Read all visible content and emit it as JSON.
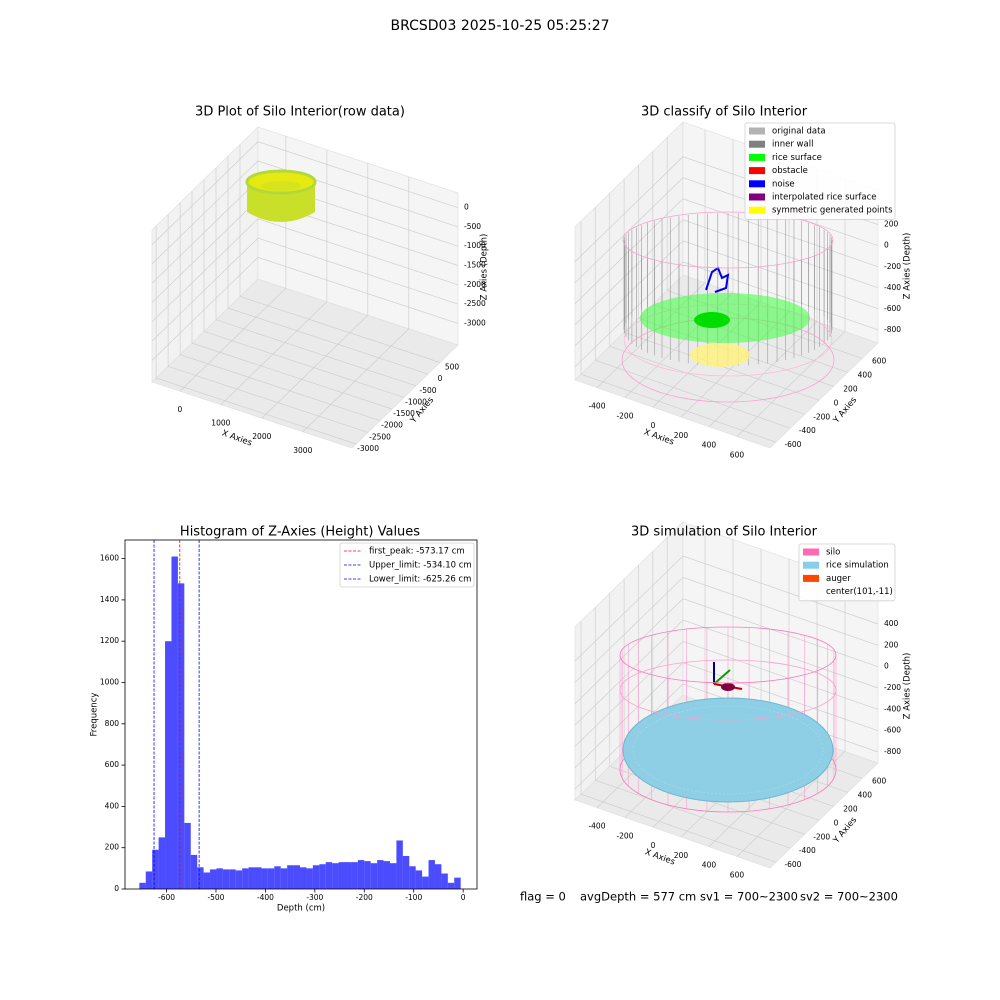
{
  "title": "BRCSD03 2025-10-25 05:25:27",
  "chart_data": [
    {
      "type": "scatter3d",
      "title": "3D Plot of Silo Interior(row data)",
      "xlabel": "X Axies",
      "ylabel": "Y Axies",
      "zlabel": "Z Axies (Depth)",
      "xlim": [
        -680,
        4200
      ],
      "xticks": [
        0,
        1000,
        2000,
        3000
      ],
      "ylim": [
        -3170,
        1250
      ],
      "yticks": [
        -3000,
        -2500,
        -2000,
        -1500,
        -1000,
        -500,
        0,
        500
      ],
      "zlim": [
        -3560,
        380
      ],
      "zticks": [
        -3000,
        -2500,
        -2000,
        -1500,
        -1000,
        -500,
        0
      ]
    },
    {
      "type": "scatter3d",
      "title": "3D classify of Silo Interior",
      "xlabel": "X Axies",
      "ylabel": "Y Axies",
      "zlabel": "Z Axies (Depth)",
      "xlim": [
        -557,
        836
      ],
      "xticks": [
        -400,
        -200,
        0,
        200,
        400,
        600
      ],
      "ylim": [
        -683,
        820
      ],
      "yticks": [
        -600,
        -400,
        -200,
        0,
        200,
        400,
        600
      ],
      "zlim": [
        -925,
        530
      ],
      "zticks": [
        -800,
        -600,
        -400,
        -200,
        0,
        200
      ],
      "legend": [
        {
          "name": "original data",
          "color": "#b3b3b3"
        },
        {
          "name": "inner wall",
          "color": "#808080"
        },
        {
          "name": "rice surface",
          "color": "#00ff00"
        },
        {
          "name": "obstacle",
          "color": "#ff0000"
        },
        {
          "name": "noise",
          "color": "#0000ff"
        },
        {
          "name": "interpolated rice surface",
          "color": "#800080"
        },
        {
          "name": "symmetric generated points",
          "color": "#ffff00"
        }
      ]
    },
    {
      "type": "histogram",
      "title": "Histogram of Z-Axies (Height) Values",
      "xlabel": "Depth (cm)",
      "ylabel": "Frequency",
      "color": "#0000ff",
      "bins": [
        -655,
        -642,
        -629,
        -616,
        -603,
        -590,
        -577,
        -564,
        -551,
        -538,
        -525,
        -512,
        -499,
        -486,
        -473,
        -460,
        -447,
        -434,
        -421,
        -408,
        -395,
        -382,
        -369,
        -356,
        -343,
        -330,
        -317,
        -304,
        -291,
        -278,
        -265,
        -252,
        -239,
        -226,
        -213,
        -200,
        -187,
        -174,
        -161,
        -148,
        -135,
        -122,
        -109,
        -96,
        -83,
        -70,
        -57,
        -44,
        -31,
        -18,
        -5
      ],
      "counts": [
        30,
        85,
        190,
        250,
        1200,
        1610,
        1480,
        320,
        165,
        105,
        80,
        95,
        100,
        95,
        95,
        90,
        100,
        105,
        105,
        100,
        100,
        110,
        100,
        115,
        115,
        105,
        100,
        115,
        120,
        130,
        125,
        130,
        130,
        130,
        140,
        135,
        125,
        140,
        135,
        125,
        235,
        160,
        110,
        90,
        60,
        140,
        120,
        75,
        30,
        55
      ],
      "xlim": [
        -684,
        28
      ],
      "xticks": [
        -600,
        -500,
        -400,
        -300,
        -200,
        -100,
        0
      ],
      "ylim": [
        0,
        1690
      ],
      "yticks": [
        0,
        200,
        400,
        600,
        800,
        1000,
        1200,
        1400,
        1600
      ],
      "vlines": [
        {
          "value": -573.17,
          "label": "first_peak: -573.17 cm",
          "color": "#ff0000"
        },
        {
          "value": -534.1,
          "label": "Upper_limit: -534.10 cm",
          "color": "#0000ff"
        },
        {
          "value": -625.26,
          "label": "Lower_limit: -625.26 cm",
          "color": "#0000ff"
        }
      ],
      "legend_loc": "upper right"
    },
    {
      "type": "surface3d",
      "title": "3D simulation of Silo Interior",
      "xlabel": "X Axies",
      "ylabel": "Y Axies",
      "zlabel": "Z Axies (Depth)",
      "xlim": [
        -557,
        836
      ],
      "xticks": [
        -400,
        -200,
        0,
        200,
        400,
        600
      ],
      "ylim": [
        -683,
        820
      ],
      "yticks": [
        -600,
        -400,
        -200,
        0,
        200,
        400,
        600
      ],
      "zlim": [
        -903,
        719
      ],
      "zticks": [
        -800,
        -600,
        -400,
        -200,
        0,
        200,
        400
      ],
      "legend": [
        {
          "name": "silo",
          "color": "#ff69b4"
        },
        {
          "name": "rice simulation",
          "color": "#87ceeb"
        },
        {
          "name": "auger",
          "color": "#ff4500"
        },
        {
          "name": "center(101,-11)"
        }
      ]
    }
  ],
  "status": [
    "flag = 0",
    "avgDepth = 577 cm",
    "sv1 = 700~2300",
    "sv2 = 700~2300"
  ]
}
